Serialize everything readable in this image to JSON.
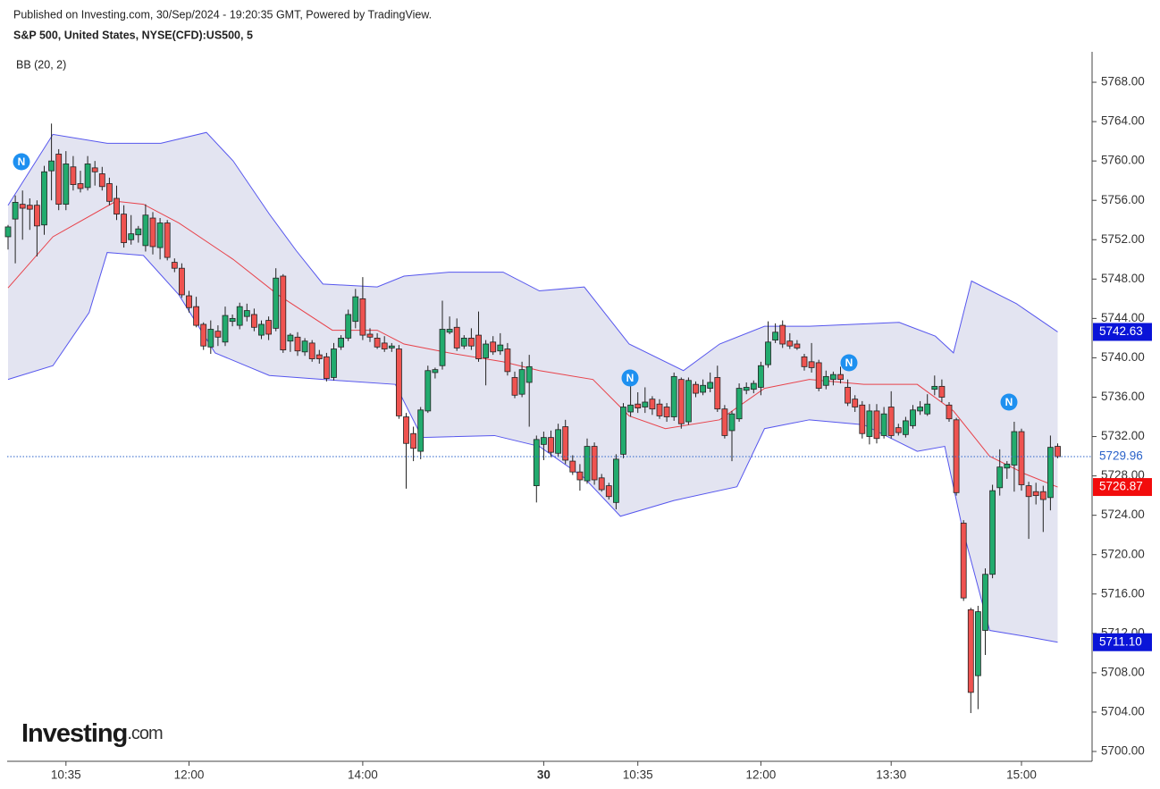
{
  "header": {
    "published": "Published on Investing.com, 30/Sep/2024 - 19:20:35 GMT, Powered by TradingView.",
    "symbol": "S&P 500, United States, NYSE(CFD):US500, 5",
    "indicator": "BB (20, 2)",
    "news_label": "N",
    "logo_main": "Investing",
    "logo_suffix": ".com"
  },
  "chart_data": {
    "type": "candlestick",
    "up_color": "#22ab6e",
    "down_color": "#ef5350",
    "ylim": [
      5699,
      5771
    ],
    "yticks": [
      {
        "value": 5700,
        "label": "5700.00"
      },
      {
        "value": 5704,
        "label": "5704.00"
      },
      {
        "value": 5708,
        "label": "5708.00"
      },
      {
        "value": 5712,
        "label": "5712.00"
      },
      {
        "value": 5716,
        "label": "5716.00"
      },
      {
        "value": 5720,
        "label": "5720.00"
      },
      {
        "value": 5724,
        "label": "5724.00"
      },
      {
        "value": 5728,
        "label": "5728.00"
      },
      {
        "value": 5732,
        "label": "5732.00"
      },
      {
        "value": 5736,
        "label": "5736.00"
      },
      {
        "value": 5740,
        "label": "5740.00"
      },
      {
        "value": 5744,
        "label": "5744.00"
      },
      {
        "value": 5748,
        "label": "5748.00"
      },
      {
        "value": 5752,
        "label": "5752.00"
      },
      {
        "value": 5756,
        "label": "5756.00"
      },
      {
        "value": 5760,
        "label": "5760.00"
      },
      {
        "value": 5764,
        "label": "5764.00"
      },
      {
        "value": 5768,
        "label": "5768.00"
      }
    ],
    "xticks": [
      {
        "value": 8,
        "label": "10:35"
      },
      {
        "value": 25,
        "label": "12:00"
      },
      {
        "value": 49,
        "label": "14:00"
      },
      {
        "value": 74,
        "label": "30"
      },
      {
        "value": 87,
        "label": "10:35"
      },
      {
        "value": 104,
        "label": "12:00"
      },
      {
        "value": 122,
        "label": "13:30"
      },
      {
        "value": 140,
        "label": "15:00"
      }
    ],
    "price_label": "5729.96",
    "price_color": "#2a62c9",
    "candles": [
      [
        5752.3,
        5753.5,
        5751,
        5753.3
      ],
      [
        5754.1,
        5756.5,
        5749.6,
        5755.8
      ],
      [
        5755.6,
        5757,
        5752,
        5755.2
      ],
      [
        5755.5,
        5756.2,
        5753,
        5755.1
      ],
      [
        5755.5,
        5756,
        5750.3,
        5753.4
      ],
      [
        5753.5,
        5759.5,
        5752.5,
        5758.9
      ],
      [
        5759,
        5763.8,
        5756,
        5760
      ],
      [
        5760.7,
        5761.2,
        5755,
        5755.6
      ],
      [
        5755.6,
        5761,
        5755,
        5759.7
      ],
      [
        5759.4,
        5760.5,
        5757,
        5757.6
      ],
      [
        5757.7,
        5759,
        5756.8,
        5757.2
      ],
      [
        5757.3,
        5760.5,
        5757,
        5759.7
      ],
      [
        5759.3,
        5760,
        5757.5,
        5758.9
      ],
      [
        5758.7,
        5759.4,
        5757,
        5757.4
      ],
      [
        5757.7,
        5758.3,
        5755.5,
        5755.9
      ],
      [
        5756.2,
        5757.5,
        5754,
        5754.6
      ],
      [
        5754.6,
        5755.5,
        5751.2,
        5751.7
      ],
      [
        5752,
        5754.5,
        5751.5,
        5752.6
      ],
      [
        5752.5,
        5753.4,
        5751.7,
        5753.1
      ],
      [
        5751.4,
        5755.6,
        5750.8,
        5754.5
      ],
      [
        5754.2,
        5754.8,
        5750.5,
        5751.3
      ],
      [
        5751.2,
        5754.2,
        5750,
        5753.7
      ],
      [
        5753.7,
        5754,
        5749.9,
        5750.2
      ],
      [
        5749.7,
        5750.1,
        5748.7,
        5749.1
      ],
      [
        5749.1,
        5749.6,
        5746.1,
        5746.4
      ],
      [
        5746.3,
        5746.8,
        5744.6,
        5745.1
      ],
      [
        5745.2,
        5746.2,
        5743.1,
        5743.3
      ],
      [
        5743.4,
        5743.6,
        5740.8,
        5741.2
      ],
      [
        5741.1,
        5743.8,
        5740.4,
        5742.9
      ],
      [
        5742.7,
        5743.3,
        5741.2,
        5742.1
      ],
      [
        5741.6,
        5745.2,
        5741.2,
        5744.3
      ],
      [
        5743.7,
        5744.4,
        5743.2,
        5744
      ],
      [
        5743.3,
        5745.6,
        5742.9,
        5745.2
      ],
      [
        5744.2,
        5745.5,
        5743.7,
        5744.8
      ],
      [
        5744.4,
        5745,
        5742.7,
        5743.1
      ],
      [
        5742.3,
        5743.8,
        5741.9,
        5743.4
      ],
      [
        5743.8,
        5744.2,
        5741.8,
        5742.4
      ],
      [
        5743,
        5749.1,
        5742.7,
        5748.1
      ],
      [
        5748.3,
        5748.5,
        5740.5,
        5740.8
      ],
      [
        5741.7,
        5742.5,
        5740.6,
        5742.3
      ],
      [
        5742.1,
        5742.6,
        5740.2,
        5740.7
      ],
      [
        5740.6,
        5742,
        5740.2,
        5741.7
      ],
      [
        5741.5,
        5741.8,
        5739.6,
        5739.9
      ],
      [
        5740.3,
        5740.8,
        5739.4,
        5739.9
      ],
      [
        5740.1,
        5740.5,
        5737.6,
        5737.9
      ],
      [
        5738,
        5741.5,
        5737.7,
        5740.9
      ],
      [
        5741.1,
        5742.3,
        5740.8,
        5742
      ],
      [
        5742,
        5744.9,
        5741.7,
        5744.4
      ],
      [
        5743.7,
        5747,
        5743,
        5746.2
      ],
      [
        5746,
        5748.2,
        5741.8,
        5742.3
      ],
      [
        5742.4,
        5743,
        5741.6,
        5742.1
      ],
      [
        5742,
        5742.5,
        5740.9,
        5741.1
      ],
      [
        5741.5,
        5742.2,
        5740.6,
        5740.9
      ],
      [
        5741,
        5741.5,
        5740.6,
        5741.2
      ],
      [
        5740.9,
        5741.3,
        5733.8,
        5734.1
      ],
      [
        5734,
        5734.4,
        5726.7,
        5731.3
      ],
      [
        5732.3,
        5733,
        5729.5,
        5730.8
      ],
      [
        5730.5,
        5735,
        5729.7,
        5734.7
      ],
      [
        5734.6,
        5739.2,
        5734.4,
        5738.7
      ],
      [
        5738.5,
        5739,
        5737.9,
        5738.8
      ],
      [
        5739.2,
        5745.8,
        5738.8,
        5742.9
      ],
      [
        5742.6,
        5744.2,
        5742.4,
        5742.9
      ],
      [
        5743.1,
        5744,
        5740.7,
        5741
      ],
      [
        5741.2,
        5742.3,
        5740.9,
        5742
      ],
      [
        5742,
        5743,
        5740.8,
        5741.2
      ],
      [
        5742.3,
        5744.7,
        5739.6,
        5739.9
      ],
      [
        5740,
        5741.8,
        5737.2,
        5741.4
      ],
      [
        5741.6,
        5742.2,
        5740.3,
        5740.6
      ],
      [
        5740.7,
        5742.5,
        5740.3,
        5741.3
      ],
      [
        5740.9,
        5741.5,
        5738.2,
        5738.6
      ],
      [
        5738,
        5738.6,
        5735.9,
        5736.2
      ],
      [
        5736.3,
        5739.6,
        5736,
        5738.8
      ],
      [
        5737.5,
        5740.3,
        5733,
        5739.1
      ],
      [
        5727,
        5732.1,
        5725.3,
        5731.7
      ],
      [
        5731.2,
        5732.5,
        5729.6,
        5731.9
      ],
      [
        5731.9,
        5732.6,
        5729.9,
        5730.4
      ],
      [
        5730.3,
        5733.3,
        5730,
        5732.7
      ],
      [
        5733,
        5733.7,
        5729.2,
        5729.6
      ],
      [
        5729.5,
        5730.1,
        5728.1,
        5728.4
      ],
      [
        5728.4,
        5729.2,
        5726.5,
        5727.6
      ],
      [
        5727.5,
        5731.8,
        5727.2,
        5731
      ],
      [
        5731,
        5731.4,
        5727.1,
        5727.6
      ],
      [
        5727.8,
        5728.2,
        5726.4,
        5726.6
      ],
      [
        5727,
        5727.3,
        5725.6,
        5725.9
      ],
      [
        5725.3,
        5730.2,
        5724.6,
        5729.7
      ],
      [
        5730.2,
        5735.4,
        5729.8,
        5735
      ],
      [
        5734.5,
        5737.3,
        5734,
        5735.2
      ],
      [
        5735.3,
        5736.5,
        5734.4,
        5734.9
      ],
      [
        5735,
        5737,
        5734.4,
        5735.5
      ],
      [
        5735.8,
        5736.1,
        5734.2,
        5734.8
      ],
      [
        5735.3,
        5735.8,
        5733.8,
        5734.1
      ],
      [
        5735,
        5735.4,
        5733.5,
        5734
      ],
      [
        5734,
        5738.5,
        5733.6,
        5738.1
      ],
      [
        5737.8,
        5738,
        5732.8,
        5733.3
      ],
      [
        5733.5,
        5738,
        5733.2,
        5737.7
      ],
      [
        5737.3,
        5737.6,
        5736,
        5736.4
      ],
      [
        5736.5,
        5737.8,
        5736.2,
        5737.2
      ],
      [
        5736.9,
        5738.5,
        5736.5,
        5737.5
      ],
      [
        5738,
        5739.2,
        5734.5,
        5734.8
      ],
      [
        5734.8,
        5735.2,
        5731.8,
        5732.1
      ],
      [
        5732.6,
        5734.6,
        5729.5,
        5734.3
      ],
      [
        5733.8,
        5737.4,
        5733.5,
        5736.9
      ],
      [
        5736.7,
        5737.5,
        5736.3,
        5737
      ],
      [
        5736.8,
        5737.7,
        5736.4,
        5737.4
      ],
      [
        5737,
        5739.6,
        5736.2,
        5739.2
      ],
      [
        5739.3,
        5743.7,
        5739,
        5741.6
      ],
      [
        5741.8,
        5743.5,
        5741.5,
        5742.6
      ],
      [
        5743.3,
        5743.8,
        5741,
        5741.4
      ],
      [
        5741.7,
        5742.5,
        5740.9,
        5741.2
      ],
      [
        5741.4,
        5741.8,
        5740.8,
        5741
      ],
      [
        5740.1,
        5740.4,
        5738.7,
        5739.1
      ],
      [
        5739.6,
        5741.5,
        5738.5,
        5739
      ],
      [
        5739.5,
        5739.8,
        5736.6,
        5736.9
      ],
      [
        5737.2,
        5738.7,
        5736.8,
        5738.1
      ],
      [
        5737.8,
        5738.6,
        5737.2,
        5738.3
      ],
      [
        5738.3,
        5739.1,
        5737.4,
        5737.8
      ],
      [
        5737,
        5737.8,
        5735.1,
        5735.4
      ],
      [
        5735.8,
        5736.2,
        5734.5,
        5735
      ],
      [
        5735.2,
        5735.6,
        5731.8,
        5732.3
      ],
      [
        5732,
        5735.3,
        5731.2,
        5734.6
      ],
      [
        5734.6,
        5735.3,
        5731.3,
        5731.8
      ],
      [
        5732.1,
        5735,
        5731.8,
        5734.3
      ],
      [
        5735,
        5736.6,
        5731.8,
        5732.1
      ],
      [
        5732.9,
        5733.3,
        5732.1,
        5732.4
      ],
      [
        5732.2,
        5734,
        5731.9,
        5733.6
      ],
      [
        5733.1,
        5735.2,
        5732.8,
        5734.7
      ],
      [
        5734.6,
        5735.6,
        5734.2,
        5735
      ],
      [
        5734.3,
        5736.3,
        5734.1,
        5735.3
      ],
      [
        5736.8,
        5738.2,
        5736.2,
        5737.1
      ],
      [
        5737.1,
        5737.8,
        5735.5,
        5736
      ],
      [
        5735.2,
        5735.5,
        5733.5,
        5733.8
      ],
      [
        5733.7,
        5733.9,
        5726,
        5726.3
      ],
      [
        5723.2,
        5723.5,
        5715.3,
        5715.6
      ],
      [
        5714.4,
        5714.6,
        5703.9,
        5706
      ],
      [
        5707.7,
        5714.8,
        5704.3,
        5714.2
      ],
      [
        5712.3,
        5718.6,
        5709.8,
        5718
      ],
      [
        5718,
        5727.1,
        5717.6,
        5726.5
      ],
      [
        5726.8,
        5730.7,
        5726,
        5728.9
      ],
      [
        5728.8,
        5729.5,
        5727.7,
        5729.2
      ],
      [
        5729.1,
        5733.5,
        5726.4,
        5732.5
      ],
      [
        5732.5,
        5732.8,
        5726.5,
        5727.1
      ],
      [
        5727,
        5727.4,
        5721.6,
        5725.9
      ],
      [
        5726.4,
        5727.3,
        5725.1,
        5726
      ],
      [
        5726.4,
        5727,
        5722.3,
        5725.6
      ],
      [
        5725.8,
        5732.1,
        5724.5,
        5730.9
      ],
      [
        5731,
        5731.3,
        5729.8,
        5729.96
      ]
    ],
    "series": [
      {
        "name": "upper",
        "color": "#5656ee",
        "label_bg": "#0a14d8",
        "last_label": "5742.63",
        "x": [
          0,
          6.2,
          13.7,
          21.1,
          27.4,
          31.1,
          36.1,
          39.8,
          43.5,
          51,
          54.7,
          60.9,
          68.4,
          73.4,
          79.6,
          85.8,
          93.3,
          98.3,
          104.5,
          110.7,
          123.1,
          128.1,
          130.6,
          133.1,
          139.3,
          145
        ],
        "values": [
          5755.5,
          5762.7,
          5761.8,
          5761.8,
          5762.9,
          5760,
          5754.6,
          5750.9,
          5747.5,
          5747.2,
          5748.3,
          5748.7,
          5748.7,
          5746.8,
          5747.2,
          5741.4,
          5738.7,
          5741.4,
          5743.2,
          5743.2,
          5743.6,
          5742.2,
          5740.5,
          5747.8,
          5745.5,
          5742.63
        ]
      },
      {
        "name": "basis",
        "color": "#e8424a",
        "label_bg": "#f20c0c",
        "last_label": "5726.87",
        "x": [
          0,
          6.2,
          14.9,
          18.7,
          23.6,
          31.1,
          37.3,
          44.8,
          51,
          54.7,
          60.9,
          68.4,
          73.4,
          80.8,
          85.8,
          90.8,
          98.3,
          104.5,
          110.7,
          118.2,
          125.6,
          130.6,
          135.6,
          140.5,
          145
        ],
        "values": [
          5747.1,
          5752.3,
          5755.9,
          5755.6,
          5753.7,
          5750,
          5746.4,
          5742.8,
          5742.8,
          5741.4,
          5740.5,
          5739.6,
          5738.7,
          5737.8,
          5734.1,
          5732.8,
          5733.7,
          5736.9,
          5737.8,
          5737.3,
          5737.3,
          5734.6,
          5730,
          5728.2,
          5726.87
        ]
      },
      {
        "name": "lower",
        "color": "#5656ee",
        "label_bg": "#0a14d8",
        "last_label": "5711.10",
        "x": [
          0,
          6.2,
          11.2,
          13.7,
          18.7,
          23.6,
          28.6,
          36.1,
          43.5,
          53.5,
          57.2,
          67.2,
          73.4,
          79.6,
          84.6,
          92,
          100.7,
          104.5,
          110.7,
          118.2,
          125.6,
          129.4,
          131.8,
          135.6,
          140.5,
          145
        ],
        "values": [
          5737.8,
          5739.2,
          5744.6,
          5750.7,
          5750.4,
          5746.4,
          5740.5,
          5738.2,
          5737.8,
          5737.3,
          5731.9,
          5732.1,
          5731,
          5727.8,
          5723.9,
          5725.5,
          5726.9,
          5732.8,
          5733.7,
          5733.2,
          5730.5,
          5731,
          5722.8,
          5712.3,
          5711.7,
          5711.1
        ]
      }
    ],
    "band_fill": "#e3e4f1"
  }
}
